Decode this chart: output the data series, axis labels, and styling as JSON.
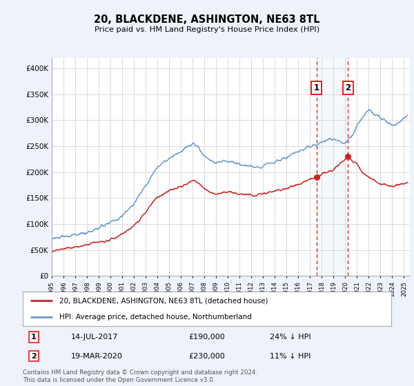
{
  "title": "20, BLACKDENE, ASHINGTON, NE63 8TL",
  "subtitle": "Price paid vs. HM Land Registry's House Price Index (HPI)",
  "ylabel_ticks": [
    "£0",
    "£50K",
    "£100K",
    "£150K",
    "£200K",
    "£250K",
    "£300K",
    "£350K",
    "£400K"
  ],
  "ytick_values": [
    0,
    50000,
    100000,
    150000,
    200000,
    250000,
    300000,
    350000,
    400000
  ],
  "ylim": [
    0,
    420000
  ],
  "xlim_start": 1995.0,
  "xlim_end": 2025.5,
  "hpi_color": "#6699cc",
  "price_color": "#cc2222",
  "marker1_date": 2017.54,
  "marker2_date": 2020.22,
  "marker1_price": 190000,
  "marker2_price": 230000,
  "legend_label1": "20, BLACKDENE, ASHINGTON, NE63 8TL (detached house)",
  "legend_label2": "HPI: Average price, detached house, Northumberland",
  "footer": "Contains HM Land Registry data © Crown copyright and database right 2024.\nThis data is licensed under the Open Government Licence v3.0.",
  "background_color": "#eef2fb",
  "plot_bg_color": "#ffffff",
  "grid_color": "#cccccc",
  "hpi_years": [
    1995,
    1995.5,
    1996,
    1996.5,
    1997,
    1997.5,
    1998,
    1998.5,
    1999,
    1999.5,
    2000,
    2000.5,
    2001,
    2001.5,
    2002,
    2002.5,
    2003,
    2003.5,
    2004,
    2004.5,
    2005,
    2005.5,
    2006,
    2006.5,
    2007,
    2007.5,
    2008,
    2008.5,
    2009,
    2009.5,
    2010,
    2010.5,
    2011,
    2011.5,
    2012,
    2012.5,
    2013,
    2013.5,
    2014,
    2014.5,
    2015,
    2015.5,
    2016,
    2016.5,
    2017,
    2017.5,
    2018,
    2018.5,
    2019,
    2019.5,
    2020,
    2020.5,
    2021,
    2021.5,
    2022,
    2022.5,
    2023,
    2023.5,
    2024,
    2024.5,
    2025.3
  ],
  "hpi_values": [
    72000,
    73500,
    75000,
    77000,
    79000,
    81000,
    84000,
    88000,
    92000,
    97000,
    103000,
    109000,
    115000,
    127000,
    140000,
    157000,
    175000,
    192000,
    210000,
    218000,
    225000,
    232000,
    240000,
    247000,
    255000,
    248000,
    230000,
    224000,
    218000,
    220000,
    222000,
    219000,
    215000,
    213000,
    210000,
    211000,
    213000,
    216000,
    220000,
    224000,
    228000,
    233000,
    238000,
    244000,
    250000,
    254000,
    258000,
    261000,
    265000,
    260000,
    255000,
    268000,
    290000,
    308000,
    320000,
    315000,
    305000,
    298000,
    290000,
    295000,
    310000
  ],
  "price_years": [
    1995,
    1995.5,
    1996,
    1996.5,
    1997,
    1997.5,
    1998,
    1998.5,
    1999,
    1999.5,
    2000,
    2000.5,
    2001,
    2001.5,
    2002,
    2002.5,
    2003,
    2003.5,
    2004,
    2004.5,
    2005,
    2005.5,
    2006,
    2006.5,
    2007,
    2007.5,
    2008,
    2008.5,
    2009,
    2009.5,
    2010,
    2010.5,
    2011,
    2011.5,
    2012,
    2012.5,
    2013,
    2013.5,
    2014,
    2014.5,
    2015,
    2015.5,
    2016,
    2016.5,
    2017,
    2017.54,
    2018,
    2018.5,
    2019,
    2019.5,
    2020,
    2020.22,
    2021,
    2021.5,
    2022,
    2022.5,
    2023,
    2023.5,
    2024,
    2024.5,
    2025.3
  ],
  "price_values": [
    48000,
    50000,
    52000,
    54000,
    56000,
    58000,
    60000,
    63000,
    66000,
    68000,
    70000,
    74000,
    80000,
    88000,
    97000,
    109000,
    122000,
    138000,
    152000,
    158000,
    163000,
    168000,
    172000,
    178000,
    183000,
    178000,
    170000,
    162000,
    157000,
    160000,
    163000,
    161000,
    158000,
    157000,
    155000,
    156000,
    158000,
    161000,
    163000,
    165000,
    168000,
    172000,
    176000,
    181000,
    187000,
    190000,
    197000,
    201000,
    205000,
    215000,
    225000,
    230000,
    215000,
    200000,
    190000,
    183000,
    178000,
    175000,
    173000,
    176000,
    180000
  ]
}
